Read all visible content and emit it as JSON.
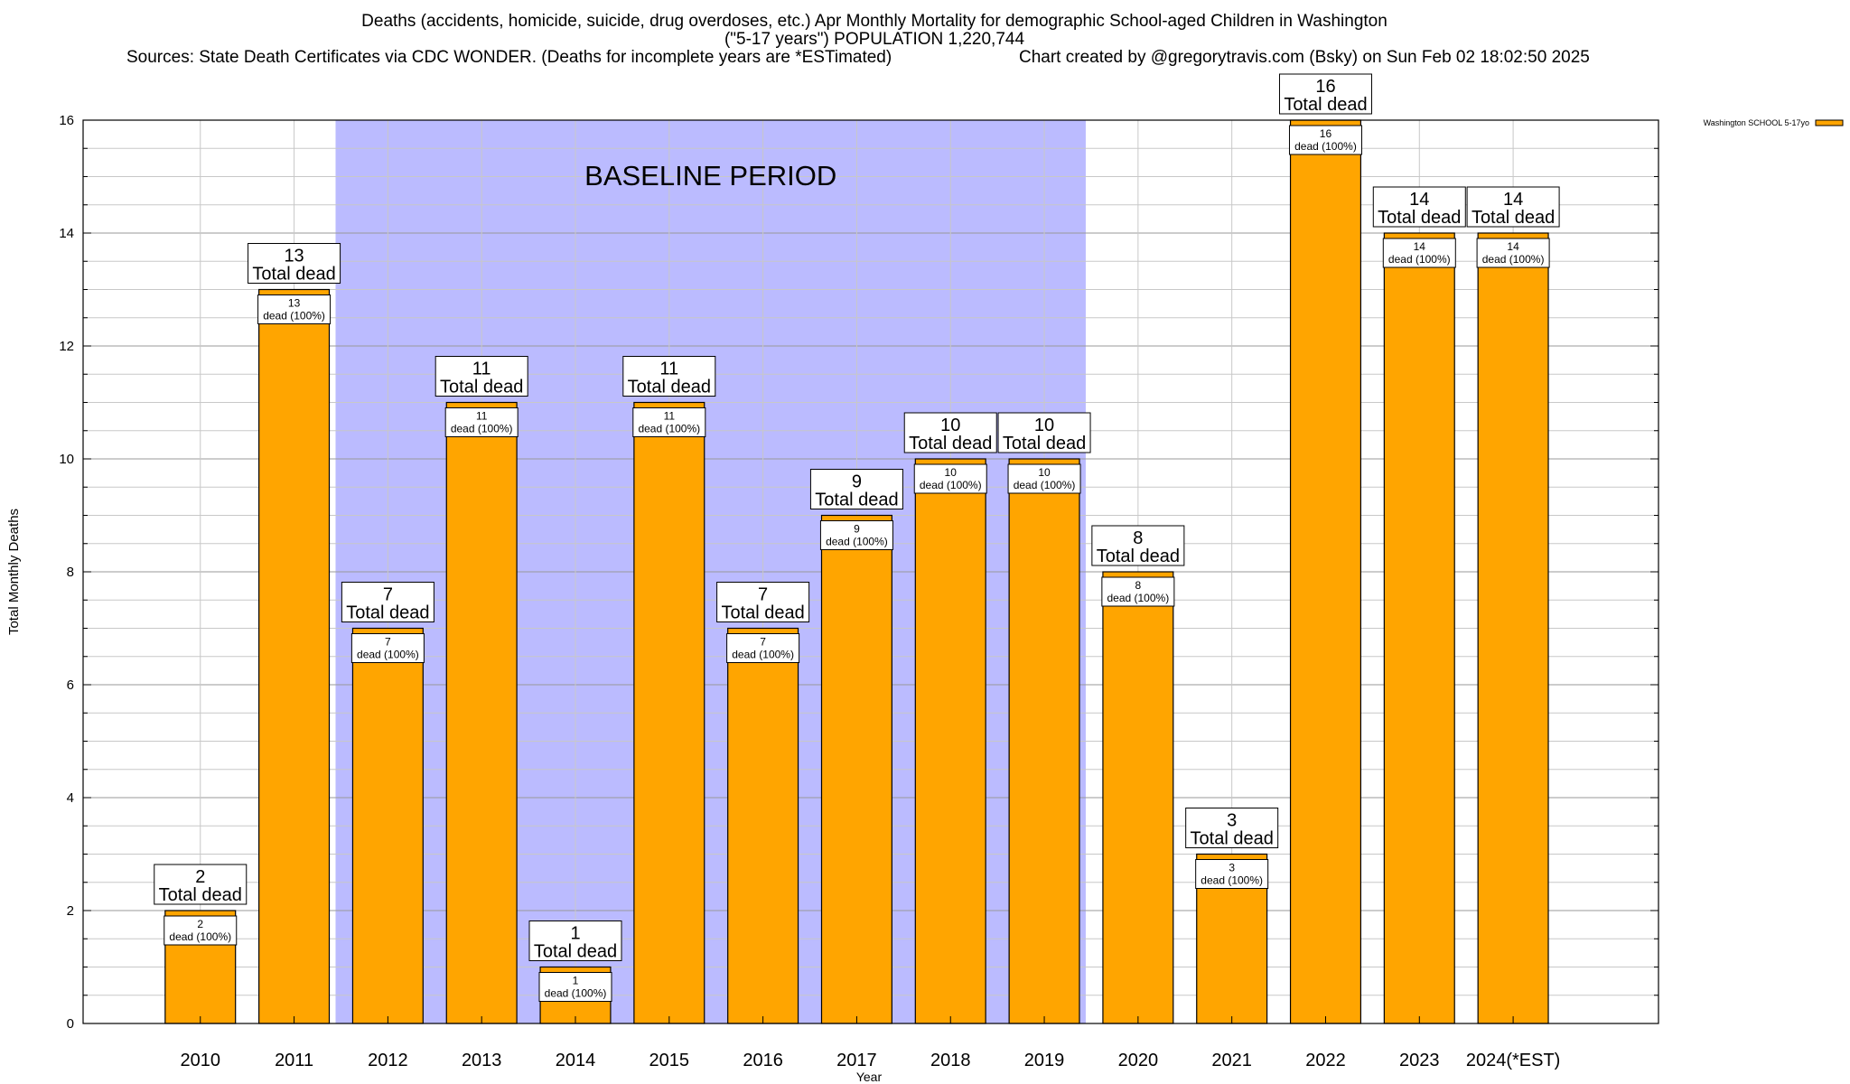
{
  "header": {
    "title_line1": "Deaths (accidents, homicide, suicide, drug overdoses, etc.) Apr Monthly Mortality for demographic School-aged Children in Washington",
    "title_line2": "(\"5-17 years\") POPULATION 1,220,744",
    "sources": "Sources: State Death Certificates via CDC WONDER. (Deaths for incomplete years are *ESTimated)",
    "credit": "Chart created by @gregorytravis.com (Bsky) on Sun Feb 02 18:02:50 2025"
  },
  "chart_data": {
    "type": "bar",
    "xlabel": "Year",
    "ylabel": "Total Monthly Deaths",
    "ylim": [
      0,
      16
    ],
    "y_ticks": [
      0,
      2,
      4,
      6,
      8,
      10,
      12,
      14,
      16
    ],
    "grid": true,
    "categories": [
      "2010",
      "2011",
      "2012",
      "2013",
      "2014",
      "2015",
      "2016",
      "2017",
      "2018",
      "2019",
      "2020",
      "2021",
      "2022",
      "2023",
      "2024(*EST)"
    ],
    "series": [
      {
        "name": "Washington SCHOOL 5-17yo",
        "color": "#FFA500",
        "values": [
          2,
          13,
          7,
          11,
          1,
          11,
          7,
          9,
          10,
          10,
          8,
          3,
          16,
          14,
          14
        ]
      }
    ],
    "baseline_region": {
      "label": "BASELINE PERIOD",
      "start_category": "2012",
      "end_category": "2019",
      "color": "#BBBBFF"
    },
    "data_labels": {
      "total_suffix": "Total dead",
      "inner_suffix": "dead (100%)"
    },
    "legend": {
      "position": "top-right"
    }
  }
}
